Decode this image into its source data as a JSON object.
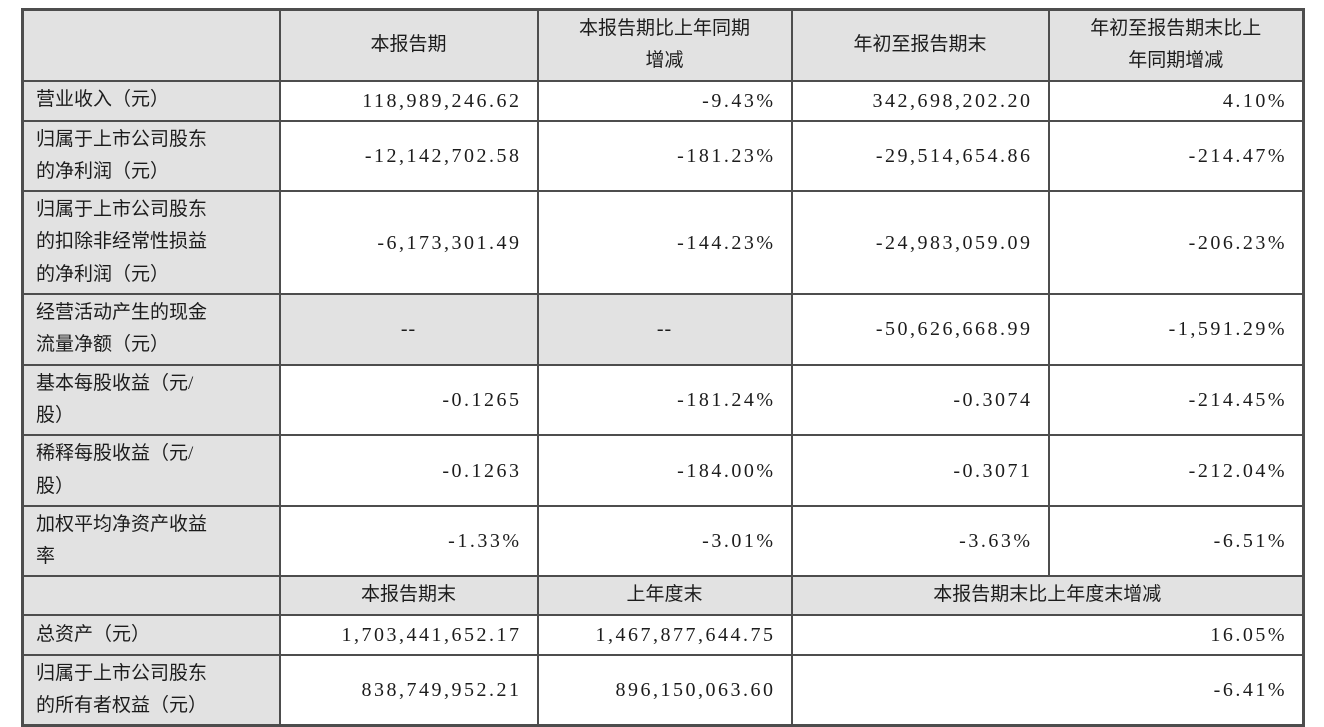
{
  "document": {
    "colors": {
      "cell_gray": "#e2e2e2",
      "border": "#4d4d4d",
      "text": "#1c1c1c",
      "background": "#ffffff"
    },
    "section1": {
      "corner": "",
      "header": [
        "本报告期",
        "本报告期比上年同期\n增减",
        "年初至报告期末",
        "年初至报告期末比上\n年同期增减"
      ],
      "rows": [
        {
          "label": "营业收入（元）",
          "values": [
            "118,989,246.62",
            "-9.43%",
            "342,698,202.20",
            "4.10%"
          ]
        },
        {
          "label": "归属于上市公司股东\n的净利润（元）",
          "values": [
            "-12,142,702.58",
            "-181.23%",
            "-29,514,654.86",
            "-214.47%"
          ]
        },
        {
          "label": "归属于上市公司股东\n的扣除非经常性损益\n的净利润（元）",
          "values": [
            "-6,173,301.49",
            "-144.23%",
            "-24,983,059.09",
            "-206.23%"
          ]
        },
        {
          "label": "经营活动产生的现金\n流量净额（元）",
          "values": [
            "--",
            "--",
            "-50,626,668.99",
            "-1,591.29%"
          ]
        },
        {
          "label": "基本每股收益（元/\n股）",
          "values": [
            "-0.1265",
            "-181.24%",
            "-0.3074",
            "-214.45%"
          ]
        },
        {
          "label": "稀释每股收益（元/\n股）",
          "values": [
            "-0.1263",
            "-184.00%",
            "-0.3071",
            "-212.04%"
          ]
        },
        {
          "label": "加权平均净资产收益\n率",
          "values": [
            "-1.33%",
            "-3.01%",
            "-3.63%",
            "-6.51%"
          ]
        }
      ]
    },
    "section2": {
      "corner": "",
      "header": [
        "本报告期末",
        "上年度末",
        "本报告期末比上年度末增减"
      ],
      "rows": [
        {
          "label": "总资产（元）",
          "values": [
            "1,703,441,652.17",
            "1,467,877,644.75"
          ],
          "change": "16.05%"
        },
        {
          "label": "归属于上市公司股东\n的所有者权益（元）",
          "values": [
            "838,749,952.21",
            "896,150,063.60"
          ],
          "change": "-6.41%"
        }
      ]
    }
  }
}
